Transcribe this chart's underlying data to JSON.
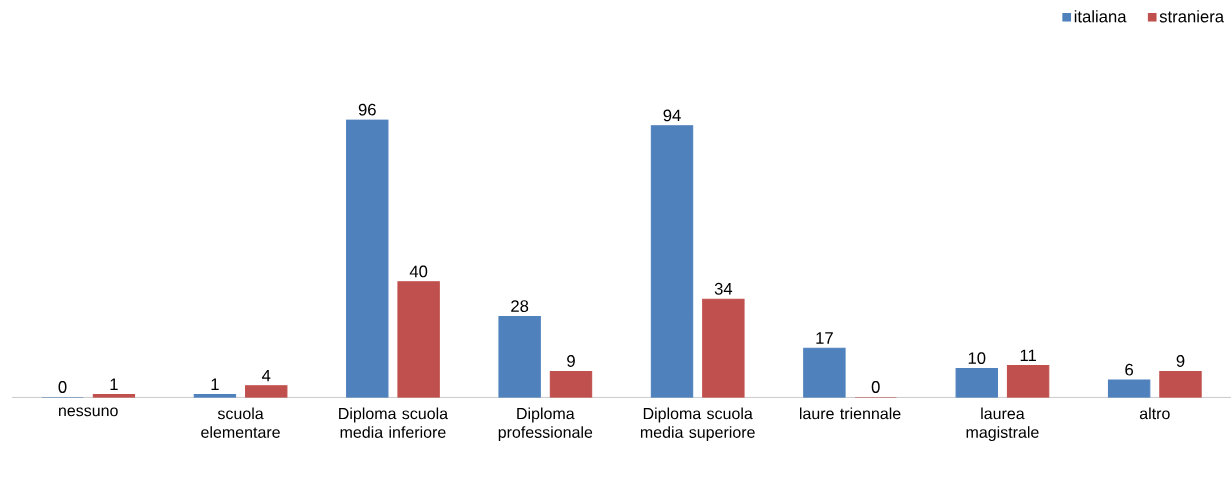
{
  "chart_data": {
    "type": "bar",
    "categories": [
      "nessuno",
      "scuola elementare",
      "Diploma scuola media inferiore",
      "Diploma professionale",
      "Diploma scuola media superiore",
      "laure triennale",
      "laurea magistrale",
      "altro"
    ],
    "series": [
      {
        "name": "italiana",
        "color": "#4f81bd",
        "values": [
          0,
          1,
          96,
          28,
          94,
          17,
          10,
          6
        ]
      },
      {
        "name": "straniera",
        "color": "#c0504d",
        "values": [
          1,
          4,
          40,
          9,
          34,
          0,
          11,
          9
        ]
      }
    ],
    "data_labels": true,
    "legend": "top right"
  }
}
